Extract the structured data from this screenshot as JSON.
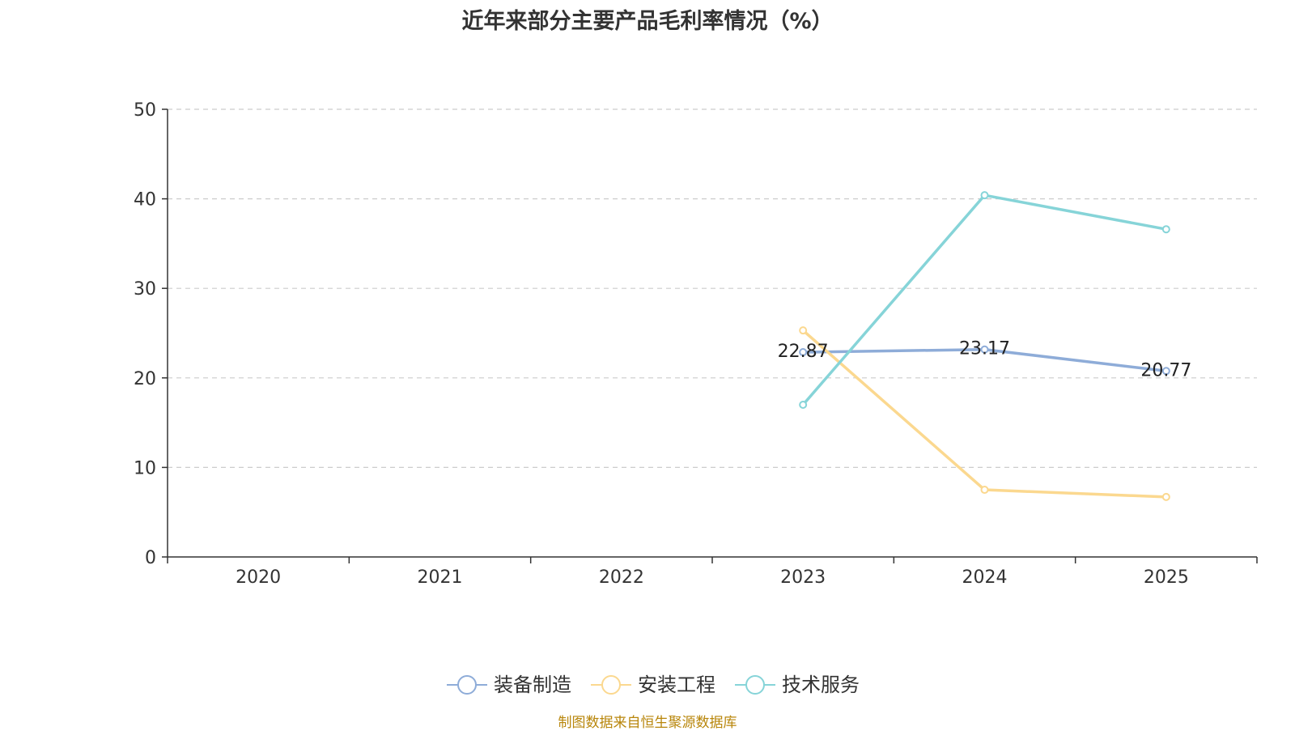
{
  "chart_data": {
    "type": "line",
    "title": "近年来部分主要产品毛利率情况（%）",
    "categories": [
      "2020",
      "2021",
      "2022",
      "2023",
      "2024",
      "2025"
    ],
    "ylim": [
      0,
      50
    ],
    "yticks": [
      0,
      10,
      20,
      30,
      40,
      50
    ],
    "grid": true,
    "legend_position": "bottom",
    "series": [
      {
        "name": "装备制造",
        "color": "#8eacd8",
        "values": [
          null,
          null,
          null,
          22.87,
          23.17,
          20.77
        ],
        "show_labels": true
      },
      {
        "name": "安装工程",
        "color": "#fbd88f",
        "values": [
          null,
          null,
          null,
          25.3,
          7.5,
          6.7
        ],
        "show_labels": false
      },
      {
        "name": "技术服务",
        "color": "#86d4d8",
        "values": [
          null,
          null,
          null,
          17.0,
          40.4,
          36.6
        ],
        "show_labels": false
      }
    ]
  },
  "source_note": "制图数据来自恒生聚源数据库"
}
